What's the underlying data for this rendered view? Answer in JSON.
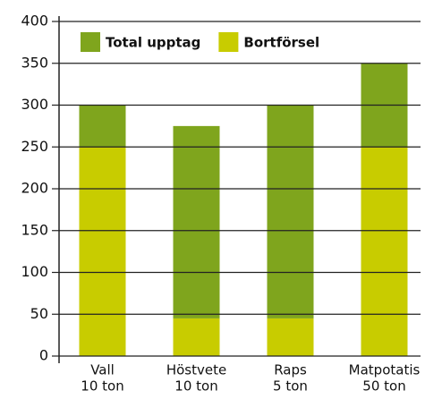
{
  "chart_data": {
    "type": "stacked_bar",
    "categories": [
      [
        "Vall",
        "10 ton"
      ],
      [
        "Höstvete",
        "10 ton"
      ],
      [
        "Raps",
        "5 ton"
      ],
      [
        "Matpotatis",
        "50 ton"
      ]
    ],
    "series": [
      {
        "name": "Bortförsel",
        "color": "#c8cc00",
        "values": [
          250,
          45,
          45,
          250
        ]
      },
      {
        "name": "Total upptag",
        "color": "#7fa51d",
        "values": [
          50,
          230,
          255,
          100
        ]
      }
    ],
    "legend_order": [
      1,
      0
    ],
    "ylim": [
      0,
      400
    ],
    "yticks": [
      0,
      50,
      100,
      150,
      200,
      250,
      300,
      350,
      400
    ],
    "grid": true
  }
}
